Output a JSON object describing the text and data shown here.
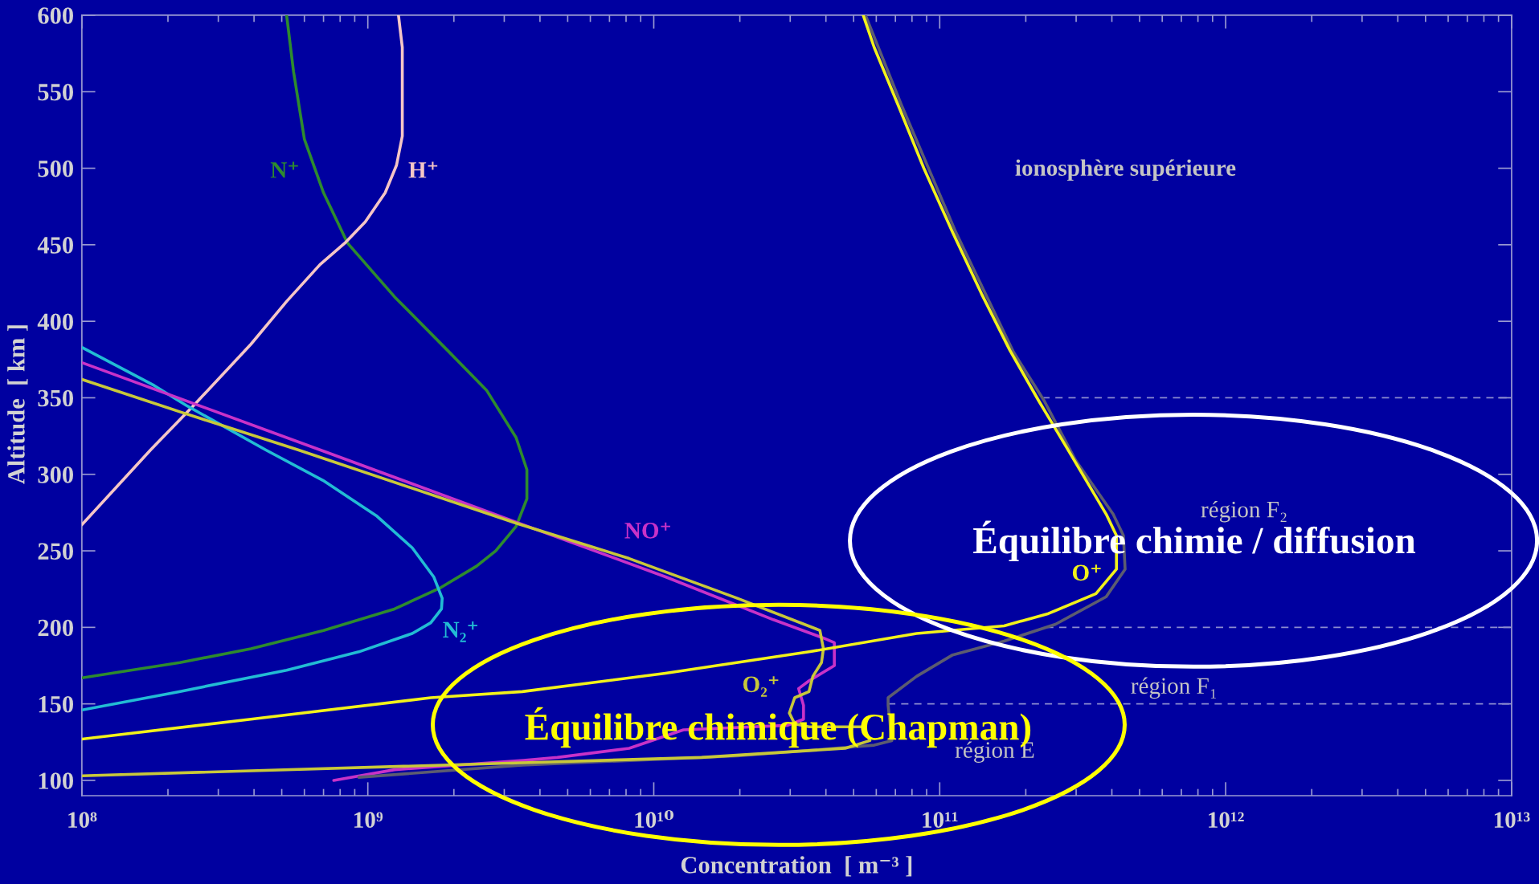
{
  "chart_data": {
    "type": "line",
    "xlabel": "Concentration  [ m⁻³ ]",
    "ylabel": "Altitude  [ km ]",
    "log": "x",
    "xlim": [
      100000000.0,
      10000000000000.0
    ],
    "ylim": [
      90,
      600
    ],
    "xticks": [
      {
        "value": 100000000.0,
        "label": "10⁸"
      },
      {
        "value": 1000000000.0,
        "label": "10⁹"
      },
      {
        "value": 10000000000.0,
        "label": "10¹⁰"
      },
      {
        "value": 100000000000.0,
        "label": "10¹¹"
      },
      {
        "value": 1000000000000.0,
        "label": "10¹²"
      },
      {
        "value": 10000000000000.0,
        "label": "10¹³"
      }
    ],
    "yticks": [
      100,
      150,
      200,
      250,
      300,
      350,
      400,
      450,
      500,
      550,
      600
    ],
    "line_style": "solid",
    "marker": "none",
    "ref_lines": [
      {
        "axis": "y",
        "value": 350,
        "color": "#8c8cd0",
        "line_style": "dashed"
      },
      {
        "axis": "y",
        "value": 200,
        "color": "#8c8cd0",
        "line_style": "dashed"
      },
      {
        "axis": "y",
        "value": 150,
        "color": "#8c8cd0",
        "line_style": "dashed"
      }
    ],
    "series": [
      {
        "name": "N⁺",
        "color": "#2e8b2e",
        "x": [
          520000000.0,
          550000000.0,
          600000000.0,
          700000000.0,
          850000000.0,
          1240000000.0,
          1900000000.0,
          2600000000.0,
          3300000000.0,
          3600000000.0,
          3600000000.0,
          3300000000.0,
          2800000000.0,
          2400000000.0,
          1800000000.0,
          1240000000.0,
          700000000.0,
          390000000.0,
          220000000.0,
          100000000.0
        ],
        "values": [
          600,
          563,
          519,
          484,
          451,
          416,
          381,
          355,
          324,
          303,
          284,
          266,
          250,
          240,
          226,
          212,
          198,
          186,
          177,
          167
        ]
      },
      {
        "name": "H⁺",
        "color": "#f5c6c6",
        "x": [
          1280000000.0,
          1320000000.0,
          1320000000.0,
          1260000000.0,
          1150000000.0,
          980000000.0,
          830000000.0,
          680000000.0,
          520000000.0,
          390000000.0,
          246000000.0,
          174000000.0,
          100000000.0
        ],
        "values": [
          600,
          579,
          521,
          502,
          484,
          465,
          451,
          437,
          413,
          385,
          345,
          316,
          267
        ]
      },
      {
        "name": "N₂⁺",
        "color": "#22bcd4",
        "x": [
          100000000.0,
          179000000.0,
          232000000.0,
          439000000.0,
          697000000.0,
          1070000000.0,
          1430000000.0,
          1700000000.0,
          1820000000.0,
          1810000000.0,
          1660000000.0,
          1430000000.0,
          930000000.0,
          520000000.0,
          219000000.0,
          100000000.0
        ],
        "values": [
          383,
          358,
          345,
          316,
          296,
          273,
          252,
          233,
          219,
          212,
          203,
          196,
          184,
          172,
          158,
          146
        ]
      },
      {
        "name": "NO⁺",
        "color": "#c832c8",
        "x": [
          100000000.0,
          680000000.0,
          3500000000.0,
          11000000000.0,
          26200000000.0,
          39200000000.0,
          42800000000.0,
          42800000000.0,
          34900000000.0,
          32100000000.0,
          33400000000.0,
          33400000000.0,
          29400000000.0,
          12700000000.0,
          8200000000.0,
          4600000000.0,
          3500000000.0,
          1240000000.0,
          760000000.0
        ],
        "values": [
          373,
          316,
          267,
          233,
          205,
          193,
          190,
          175,
          165,
          160,
          149,
          140,
          136,
          133,
          121,
          115,
          113,
          107,
          100
        ]
      },
      {
        "color": "#5c5c70",
        "x": [
          55000000000.0,
          74000000000.0,
          114000000000.0,
          181000000000.0,
          232000000000.0,
          299000000000.0,
          404000000000.0,
          439000000000.0,
          445000000000.0,
          382000000000.0,
          254000000000.0,
          168000000000.0,
          111000000000.0,
          83000000000.0,
          66000000000.0,
          66000000000.0,
          68000000000.0,
          59000000000.0,
          19600000000.0,
          3470000000.0,
          930000000.0
        ],
        "values": [
          600,
          540,
          458,
          380,
          348,
          309,
          274,
          260,
          238,
          220,
          202,
          191,
          182,
          168,
          154,
          149,
          126,
          123,
          116,
          110,
          102
        ]
      },
      {
        "name": "O₂⁺",
        "color": "#c8c83a",
        "x": [
          100000000.0,
          219000000.0,
          570000000.0,
          3310000000.0,
          8200000000.0,
          19600000000.0,
          38100000000.0,
          39200000000.0,
          38600000000.0,
          36000000000.0,
          34900000000.0,
          31100000000.0,
          29800000000.0,
          31100000000.0,
          34900000000.0,
          54000000000.0,
          57000000000.0,
          46700000000.0,
          14700000000.0,
          3470000000.0,
          100000000.0
        ],
        "values": [
          362,
          341,
          316,
          268,
          245,
          219,
          198,
          186,
          177,
          168,
          158,
          154,
          144,
          137,
          135,
          135,
          126,
          121,
          115,
          111.5,
          103
        ]
      },
      {
        "name": "O⁺",
        "color": "#f2f21a",
        "x": [
          54000000000.0,
          59000000000.0,
          72000000000.0,
          88000000000.0,
          111000000000.0,
          140000000000.0,
          176000000000.0,
          222000000000.0,
          279000000000.0,
          382000000000.0,
          415000000000.0,
          415000000000.0,
          352000000000.0,
          240000000000.0,
          168000000000.0,
          83000000000.0,
          34900000000.0,
          11000000000.0,
          3470000000.0,
          1660000000.0,
          390000000.0,
          100000000.0
        ],
        "values": [
          600,
          579,
          540,
          500,
          458,
          418,
          381,
          348,
          317,
          274,
          260,
          238,
          222,
          209,
          201,
          196,
          184,
          170,
          158,
          154,
          140,
          127
        ]
      }
    ],
    "annotations": [
      "ionosphère supérieure",
      "région F₂",
      "région F₁",
      "région E",
      "Équilibre chimie / diffusion",
      "Équilibre chimique (Chapman)"
    ]
  }
}
